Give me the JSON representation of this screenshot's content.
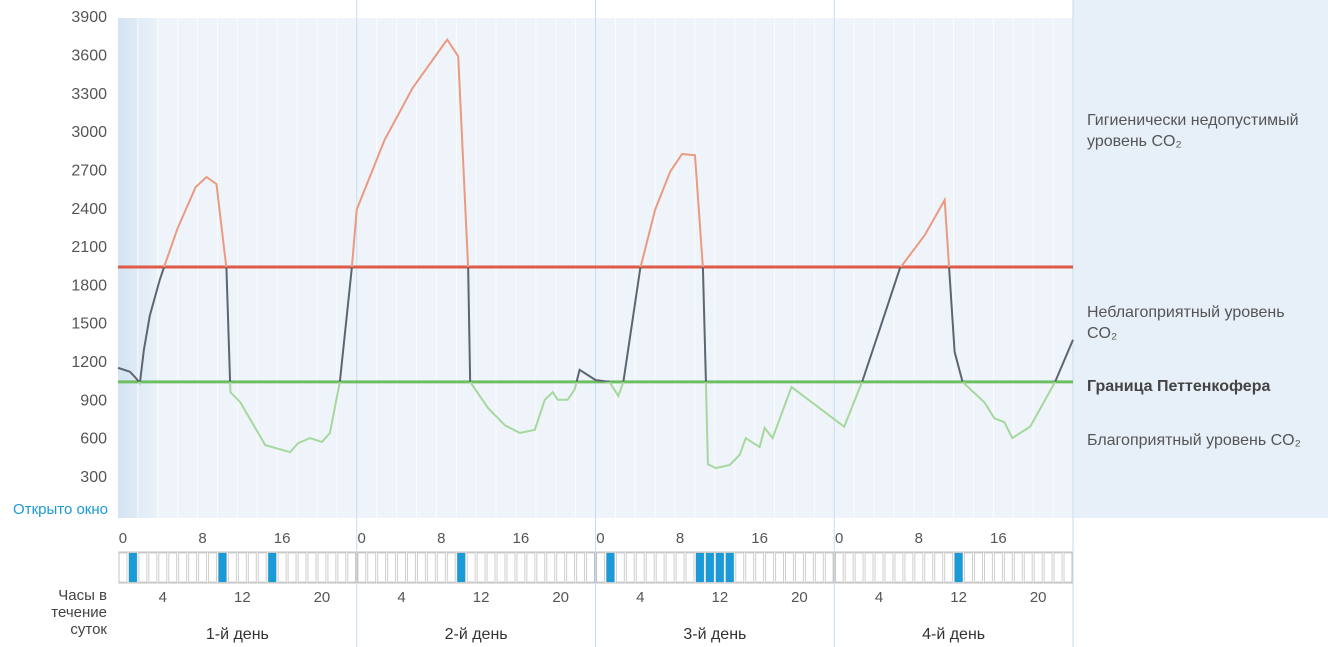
{
  "chart_data": {
    "type": "line",
    "xlim": [
      0,
      96
    ],
    "ylim": [
      0,
      3900
    ],
    "yticks": [
      300,
      600,
      900,
      1200,
      1500,
      1800,
      2100,
      2400,
      2700,
      3000,
      3300,
      3600,
      3900
    ],
    "x": [
      0,
      1.2,
      1.8,
      2.2,
      2.6,
      3.2,
      4.2,
      4.7,
      6.0,
      7.8,
      8.9,
      9.9,
      10.9,
      11.3,
      12.3,
      14.8,
      17.3,
      18.1,
      19.3,
      20.5,
      21.3,
      22.3,
      23.5,
      24,
      26.8,
      29.6,
      32.9,
      33.1,
      34.2,
      35.2,
      35.4,
      37.2,
      38.9,
      40.4,
      41.9,
      42.9,
      43.7,
      44.2,
      45.2,
      45.9,
      46.4,
      48,
      49.4,
      50.3,
      50.8,
      52.5,
      54,
      55.5,
      56.7,
      58,
      58.8,
      59.1,
      59.3,
      60.1,
      61.5,
      62.5,
      63.1,
      64.5,
      65,
      65.8,
      67.7,
      73,
      74.8,
      76.6,
      78.6,
      81.1,
      83.1,
      84.1,
      84.9,
      87.1,
      88.1,
      89.1,
      89.9,
      91.7,
      94.2,
      96
    ],
    "values": [
      1160,
      1130,
      1080,
      1040,
      1300,
      1570,
      1850,
      1965,
      2255,
      2575,
      2655,
      2600,
      1940,
      970,
      890,
      555,
      500,
      570,
      610,
      580,
      650,
      1050,
      1940,
      2400,
      2945,
      3350,
      3710,
      3730,
      3600,
      1940,
      1050,
      845,
      710,
      650,
      675,
      910,
      970,
      910,
      910,
      990,
      1145,
      1065,
      1050,
      940,
      1050,
      1940,
      2400,
      2695,
      2835,
      2825,
      1940,
      1050,
      405,
      375,
      400,
      480,
      610,
      540,
      690,
      610,
      1010,
      700,
      1050,
      1470,
      1940,
      2200,
      2475,
      1285,
      1050,
      890,
      765,
      735,
      610,
      700,
      1050,
      1380
    ],
    "thresholds": [
      {
        "value": 1950,
        "color": "#e05a48"
      },
      {
        "name": "Граница Петтенкофера",
        "value": 1050,
        "color": "#6cc062"
      }
    ],
    "zones": [
      {
        "name": "Гигиенически недопустимый уровень CO₂",
        "color": "#eb9a82"
      },
      {
        "name": "Неблагоприятный уровень CO₂",
        "color": "#5b6670"
      },
      {
        "name": "Благоприятный уровень CO₂",
        "color": "#a6d89e"
      }
    ],
    "window": {
      "label": "Открыто окно",
      "hours_label": "Часы в течение суток",
      "color": "#1a9ad6",
      "hour_ticks": [
        0,
        4,
        8,
        12,
        16,
        20
      ],
      "days": [
        {
          "name": "1-й день",
          "open_hours": [
            1,
            10,
            15
          ]
        },
        {
          "name": "2-й день",
          "open_hours": [
            10
          ]
        },
        {
          "name": "3-й день",
          "open_hours": [
            1,
            10,
            11,
            12,
            13
          ]
        },
        {
          "name": "4-й день",
          "open_hours": [
            12
          ]
        }
      ]
    }
  }
}
